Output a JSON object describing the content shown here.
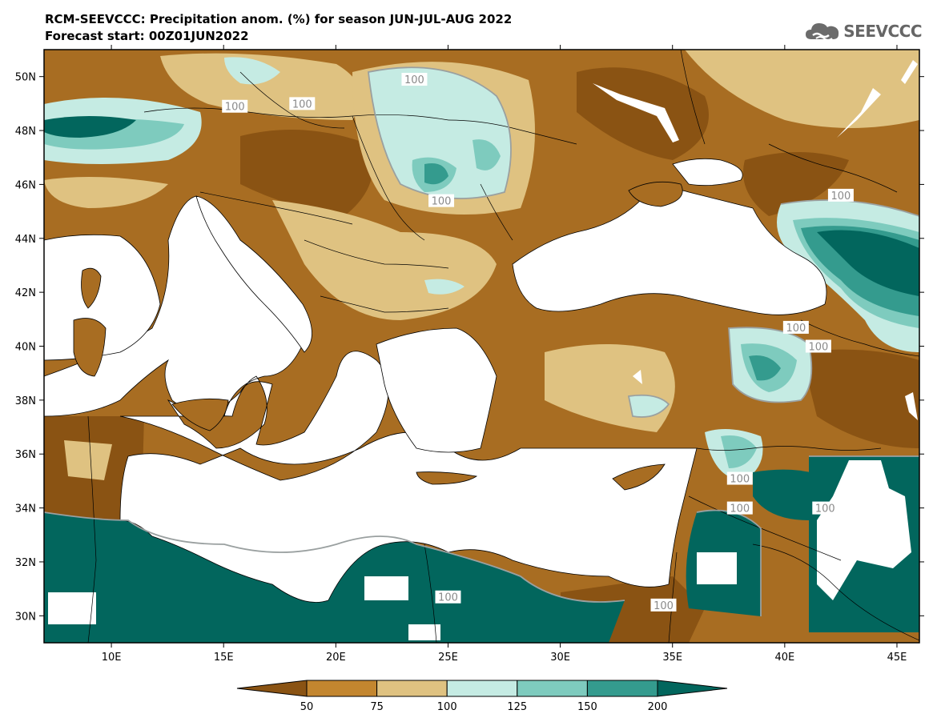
{
  "header": {
    "title": "RCM-SEEVCCC: Precipitation anom. (%) for season JUN-JUL-AUG 2022",
    "subtitle": "Forecast start: 00Z01JUN2022"
  },
  "logo": {
    "text": "SEEVCCC",
    "icon": "cloud-icon"
  },
  "map": {
    "lon_range": [
      7,
      46
    ],
    "lat_range": [
      29,
      51
    ],
    "x_ticks": [
      "10E",
      "15E",
      "20E",
      "25E",
      "30E",
      "35E",
      "40E",
      "45E"
    ],
    "y_ticks": [
      "50N",
      "48N",
      "46N",
      "44N",
      "42N",
      "40N",
      "38N",
      "36N",
      "34N",
      "32N",
      "30N"
    ],
    "contour_label": "100",
    "contour_label_points": [
      [
        23.5,
        49.9
      ],
      [
        18.5,
        49.0
      ],
      [
        15.5,
        48.9
      ],
      [
        24.7,
        45.4
      ],
      [
        42.5,
        45.6
      ],
      [
        40.5,
        40.7
      ],
      [
        41.5,
        40.0
      ],
      [
        38.0,
        35.1
      ],
      [
        38.0,
        34.0
      ],
      [
        41.8,
        34.0
      ],
      [
        25.0,
        30.7
      ],
      [
        34.6,
        30.4
      ]
    ],
    "land_color": "#a86d22",
    "sea_color": "#ffffff"
  },
  "legend": {
    "boundaries": [
      "50",
      "75",
      "100",
      "125",
      "150",
      "200"
    ],
    "colors": [
      "#8a5313",
      "#c3862f",
      "#dfc281",
      "#c5ebe3",
      "#7ecbbe",
      "#349b8e",
      "#02665d"
    ]
  }
}
